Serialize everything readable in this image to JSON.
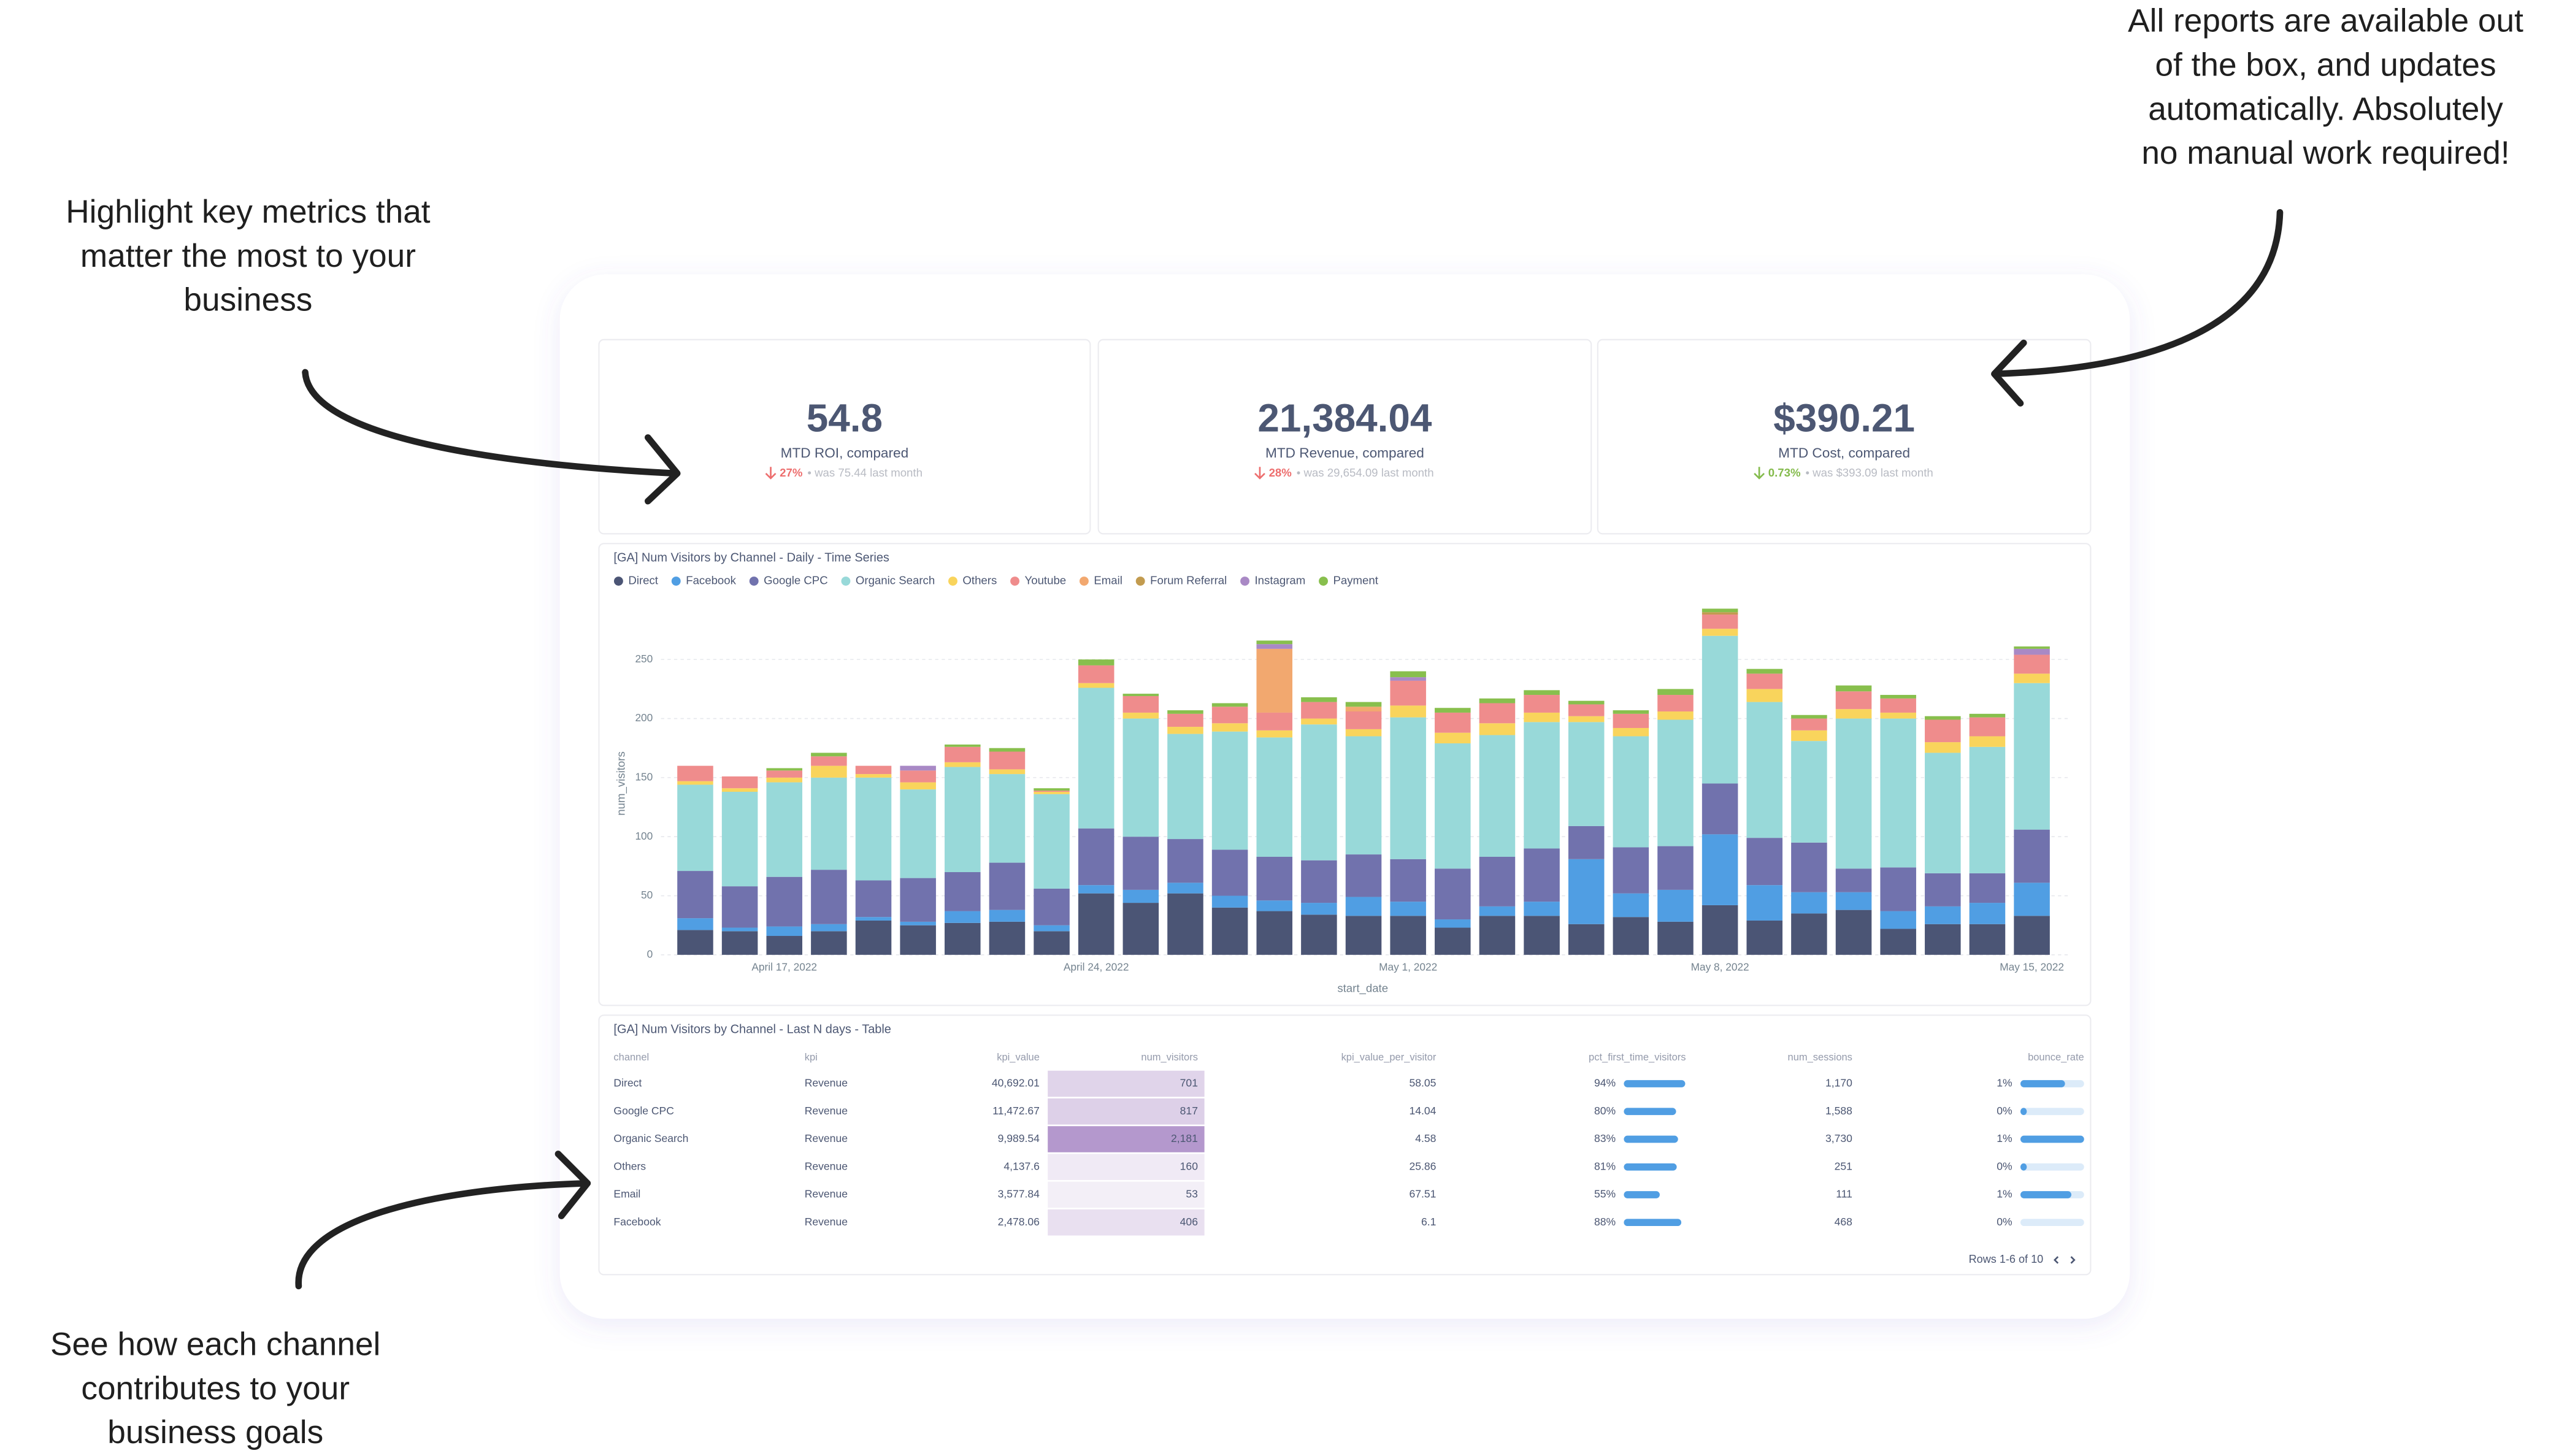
{
  "annotations": [
    {
      "lines": [
        "Highlight key metrics that",
        "matter the most to your",
        "business"
      ]
    },
    {
      "lines": [
        "All reports are available out",
        "of the box, and updates",
        "automatically. Absolutely",
        "no manual work required!"
      ]
    },
    {
      "lines": [
        "See how each channel",
        "contributes to your",
        "business goals"
      ]
    }
  ],
  "kpis": [
    {
      "value": "54.8",
      "label": "MTD ROI, compared",
      "change": "27%",
      "comparison": "• was 75.44 last month",
      "color": "#ed6e6e"
    },
    {
      "value": "21,384.04",
      "label": "MTD Revenue, compared",
      "change": "28%",
      "comparison": "• was 29,654.09 last month",
      "color": "#ed6e6e"
    },
    {
      "value": "$390.21",
      "label": "MTD Cost, compared",
      "change": "0.73%",
      "comparison": "• was $393.09 last month",
      "color": "#84bb4c"
    }
  ],
  "chart_data": {
    "type": "stacked_bar",
    "title": "[GA] Num Visitors by Channel - Daily - Time Series",
    "x_label": "start_date",
    "y_label": "num_visitors",
    "categories": [
      null,
      null,
      "April 17, 2022",
      null,
      null,
      null,
      null,
      null,
      null,
      "April 24, 2022",
      null,
      null,
      null,
      null,
      null,
      null,
      "May 1, 2022",
      null,
      null,
      null,
      null,
      null,
      null,
      "May 8, 2022",
      null,
      null,
      null,
      null,
      null,
      null,
      "May 15, 2022"
    ],
    "ylim": [
      0,
      300
    ],
    "yticks": [
      0,
      50,
      100,
      150,
      200,
      250
    ],
    "grid": true,
    "series": [
      {
        "name": "Direct",
        "color": "#4b5575",
        "values": [
          21,
          20,
          16,
          20,
          29,
          25,
          27,
          28,
          20,
          52,
          44,
          52,
          40,
          37,
          34,
          33,
          33,
          23,
          33,
          33,
          26,
          32,
          28,
          42,
          29,
          35,
          38,
          22,
          26,
          26,
          33
        ]
      },
      {
        "name": "Facebook",
        "color": "#509ee3",
        "values": [
          10,
          3,
          8,
          6,
          3,
          3,
          10,
          10,
          5,
          7,
          11,
          9,
          10,
          9,
          10,
          16,
          12,
          7,
          8,
          12,
          55,
          20,
          27,
          60,
          30,
          18,
          15,
          15,
          15,
          18,
          28
        ]
      },
      {
        "name": "Google CPC",
        "color": "#7172ad",
        "values": [
          40,
          35,
          42,
          46,
          31,
          37,
          33,
          40,
          31,
          48,
          45,
          37,
          39,
          37,
          36,
          36,
          36,
          43,
          42,
          45,
          28,
          39,
          37,
          43,
          40,
          42,
          20,
          37,
          28,
          25,
          45
        ]
      },
      {
        "name": "Organic Search",
        "color": "#98d9d9",
        "values": [
          73,
          80,
          80,
          78,
          87,
          75,
          89,
          75,
          80,
          119,
          100,
          89,
          100,
          101,
          115,
          100,
          120,
          106,
          103,
          107,
          88,
          94,
          107,
          125,
          115,
          86,
          127,
          126,
          102,
          107,
          124
        ]
      },
      {
        "name": "Others",
        "color": "#f9d45c",
        "values": [
          3,
          3,
          4,
          10,
          3,
          6,
          4,
          4,
          2,
          4,
          5,
          6,
          7,
          6,
          5,
          6,
          10,
          9,
          10,
          8,
          5,
          7,
          7,
          6,
          11,
          9,
          8,
          5,
          9,
          9,
          8
        ]
      },
      {
        "name": "Youtube",
        "color": "#ef8c8c",
        "values": [
          13,
          10,
          6,
          8,
          7,
          10,
          13,
          15,
          1,
          15,
          14,
          11,
          14,
          15,
          14,
          15,
          21,
          17,
          17,
          15,
          10,
          12,
          14,
          12,
          13,
          10,
          15,
          12,
          19,
          16,
          16
        ]
      },
      {
        "name": "Email",
        "color": "#f2a86f",
        "values": [
          0,
          0,
          0,
          0,
          0,
          0,
          0,
          0,
          0,
          0,
          0,
          0,
          0,
          54,
          0,
          4,
          0,
          0,
          0,
          0,
          0,
          0,
          0,
          0,
          0,
          0,
          0,
          0,
          0,
          0,
          0
        ]
      },
      {
        "name": "Forum Referral",
        "color": "#c29b4f",
        "values": [
          0,
          0,
          0,
          0,
          0,
          0,
          0,
          0,
          0,
          0,
          0,
          0,
          0,
          0,
          0,
          0,
          0,
          0,
          0,
          0,
          0,
          0,
          0,
          2,
          0,
          0,
          0,
          0,
          0,
          0,
          0
        ]
      },
      {
        "name": "Instagram",
        "color": "#a989c5",
        "values": [
          0,
          0,
          0,
          0,
          0,
          4,
          0,
          0,
          0,
          0,
          0,
          0,
          0,
          4,
          0,
          0,
          3,
          0,
          0,
          0,
          0,
          0,
          0,
          0,
          0,
          0,
          0,
          0,
          0,
          0,
          5
        ]
      },
      {
        "name": "Payment",
        "color": "#88bf4d",
        "values": [
          0,
          0,
          2,
          3,
          0,
          0,
          2,
          3,
          2,
          5,
          2,
          3,
          3,
          3,
          4,
          4,
          5,
          4,
          4,
          4,
          3,
          3,
          5,
          3,
          4,
          3,
          5,
          3,
          3,
          3,
          2
        ]
      }
    ]
  },
  "table": {
    "title": "[GA] Num Visitors by Channel - Last N days - Table",
    "columns": [
      "channel",
      "kpi",
      "kpi_value",
      "num_visitors",
      "kpi_value_per_visitor",
      "pct_first_time_visitors",
      "num_sessions",
      "bounce_rate"
    ],
    "rows": [
      [
        "Direct",
        "Revenue",
        "40,692.01",
        701,
        58.05,
        {
          "value": 94,
          "label": "94%"
        },
        "1,170",
        {
          "value": 0.7,
          "label": "1%"
        }
      ],
      [
        "Google CPC",
        "Revenue",
        "11,472.67",
        817,
        14.04,
        {
          "value": 80,
          "label": "80%"
        },
        "1,588",
        {
          "value": 0.1,
          "label": "0%"
        }
      ],
      [
        "Organic Search",
        "Revenue",
        "9,989.54",
        {
          "value": 2181,
          "label": "2,181"
        },
        4.58,
        {
          "value": 83,
          "label": "83%"
        },
        "3,730",
        {
          "value": 1.0,
          "label": "1%"
        }
      ],
      [
        "Others",
        "Revenue",
        "4,137.6",
        160,
        25.86,
        {
          "value": 81,
          "label": "81%"
        },
        251,
        {
          "value": 0.1,
          "label": "0%"
        }
      ],
      [
        "Email",
        "Revenue",
        "3,577.84",
        53,
        67.51,
        {
          "value": 55,
          "label": "55%"
        },
        111,
        {
          "value": 0.8,
          "label": "1%"
        }
      ],
      [
        "Facebook",
        "Revenue",
        "2,478.06",
        406,
        6.1,
        {
          "value": 88,
          "label": "88%"
        },
        468,
        {
          "value": 0,
          "label": "0%"
        }
      ]
    ],
    "footer": "Rows 1-6 of 10"
  }
}
